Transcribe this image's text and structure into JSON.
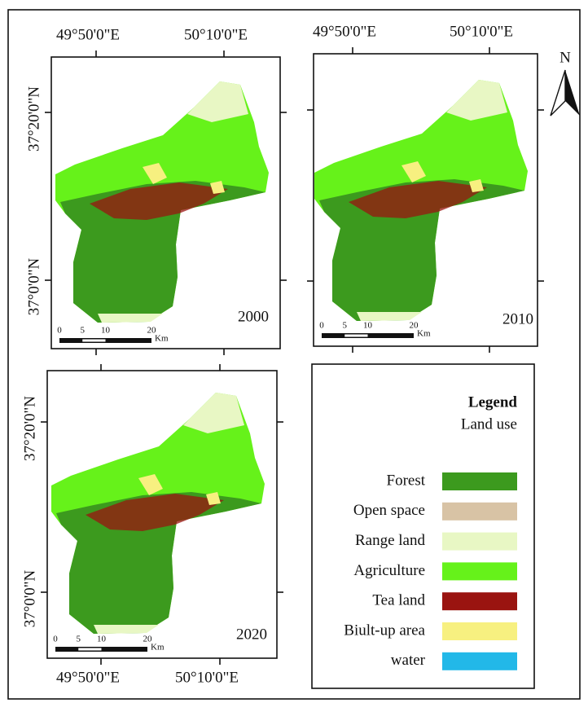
{
  "panels": [
    {
      "year": "2000",
      "top_labels": [
        "49°50'0\"E",
        "50°10'0\"E"
      ],
      "left_labels": [
        "37°20'0\"N",
        "37°0'0\"N"
      ],
      "scale": {
        "ticks": [
          "0",
          "5",
          "10",
          "20"
        ],
        "unit": "Km"
      }
    },
    {
      "year": "2010",
      "top_labels": [
        "49°50'0\"E",
        "50°10'0\"E"
      ],
      "scale": {
        "ticks": [
          "0",
          "5",
          "10",
          "20"
        ],
        "unit": "Km"
      }
    },
    {
      "year": "2020",
      "left_labels": [
        "37°20'0\"N",
        "37°0'0\"N"
      ],
      "bottom_labels": [
        "49°50'0\"E",
        "50°10'0\"E"
      ],
      "scale": {
        "ticks": [
          "0",
          "5",
          "10",
          "20"
        ],
        "unit": "Km"
      }
    }
  ],
  "north": "N",
  "legend": {
    "title": "Legend",
    "subtitle": "Land use",
    "items": [
      {
        "label": "Forest",
        "color": "#3c9a1e"
      },
      {
        "label": "Open space",
        "color": "#d8c3a5"
      },
      {
        "label": "Range land",
        "color": "#e8f7c4"
      },
      {
        "label": "Agriculture",
        "color": "#66f21a"
      },
      {
        "label": "Tea land",
        "color": "#9a1410"
      },
      {
        "label": "Biult-up area",
        "color": "#f7f080"
      },
      {
        "label": "water",
        "color": "#22b8e8"
      }
    ]
  }
}
